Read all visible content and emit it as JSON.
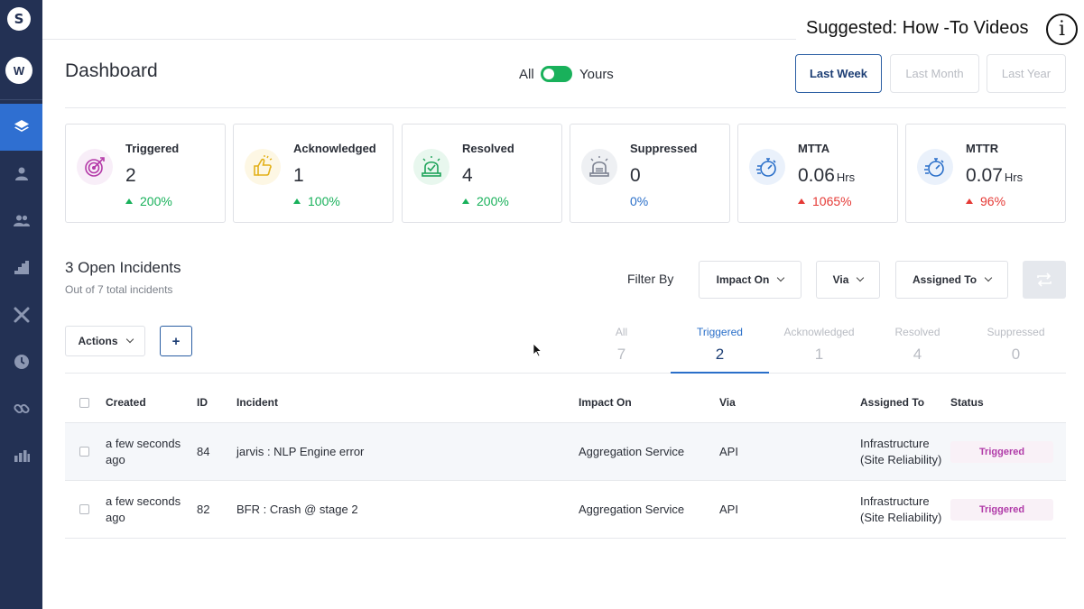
{
  "sidebar": {
    "logo_glyph": "S",
    "avatar_initial": "W",
    "items": [
      {
        "icon": "layers-icon",
        "active": true
      },
      {
        "icon": "user-icon",
        "active": false
      },
      {
        "icon": "users-icon",
        "active": false
      },
      {
        "icon": "staircase-chart-icon",
        "active": false
      },
      {
        "icon": "tools-icon",
        "active": false
      },
      {
        "icon": "clock-icon",
        "active": false
      },
      {
        "icon": "link-icon",
        "active": false
      },
      {
        "icon": "bar-chart-icon",
        "active": false
      }
    ]
  },
  "header": {
    "suggested": "Suggested: How -To Videos",
    "info_glyph": "i",
    "title": "Dashboard",
    "toggle_left": "All",
    "toggle_right": "Yours",
    "toggle_on": true,
    "ranges": [
      "Last Week",
      "Last Month",
      "Last Year"
    ],
    "active_range": "Last Week"
  },
  "stats": [
    {
      "label": "Triggered",
      "value": "2",
      "unit": "",
      "change": "200%",
      "trend": "up",
      "color": "#19b15b",
      "icon": "target-icon",
      "icon_bg": "#f8eef8"
    },
    {
      "label": "Acknowledged",
      "value": "1",
      "unit": "",
      "change": "100%",
      "trend": "up",
      "color": "#19b15b",
      "icon": "thumbs-up-icon",
      "icon_bg": "#fdf7e4"
    },
    {
      "label": "Resolved",
      "value": "4",
      "unit": "",
      "change": "200%",
      "trend": "up",
      "color": "#19b15b",
      "icon": "siren-check-icon",
      "icon_bg": "#e8f7ee"
    },
    {
      "label": "Suppressed",
      "value": "0",
      "unit": "",
      "change": "0%",
      "trend": "none",
      "color": "#2a6fc9",
      "icon": "siren-muted-icon",
      "icon_bg": "#eef0f3"
    },
    {
      "label": "MTTA",
      "value": "0.06",
      "unit": "Hrs",
      "change": "1065%",
      "trend": "up",
      "color": "#e53935",
      "icon": "stopwatch-icon",
      "icon_bg": "#eaf1fb"
    },
    {
      "label": "MTTR",
      "value": "0.07",
      "unit": "Hrs",
      "change": "96%",
      "trend": "up",
      "color": "#e53935",
      "icon": "stopwatch-icon",
      "icon_bg": "#eaf1fb"
    }
  ],
  "incidents": {
    "title": "3 Open Incidents",
    "subtitle": "Out of 7 total incidents",
    "filter_label": "Filter By",
    "filters": [
      "Impact On",
      "Via",
      "Assigned To"
    ],
    "actions_label": "Actions",
    "add_label": "+",
    "tabs": [
      {
        "label": "All",
        "count": "7"
      },
      {
        "label": "Triggered",
        "count": "2"
      },
      {
        "label": "Acknowledged",
        "count": "1"
      },
      {
        "label": "Resolved",
        "count": "4"
      },
      {
        "label": "Suppressed",
        "count": "0"
      }
    ],
    "active_tab": "Triggered",
    "columns": [
      "Created",
      "ID",
      "Incident",
      "Impact On",
      "Via",
      "Assigned To",
      "Status"
    ],
    "rows": [
      {
        "created_1": "a few seconds",
        "created_2": "ago",
        "id": "84",
        "incident": "jarvis : NLP Engine error",
        "impact": "Aggregation Service",
        "via": "API",
        "assigned_1": "Infrastructure",
        "assigned_2": "(Site Reliability)",
        "status": "Triggered"
      },
      {
        "created_1": "a few seconds",
        "created_2": "ago",
        "id": "82",
        "incident": "BFR : Crash @ stage 2",
        "impact": "Aggregation Service",
        "via": "API",
        "assigned_1": "Infrastructure",
        "assigned_2": "(Site Reliability)",
        "status": "Triggered"
      }
    ]
  }
}
